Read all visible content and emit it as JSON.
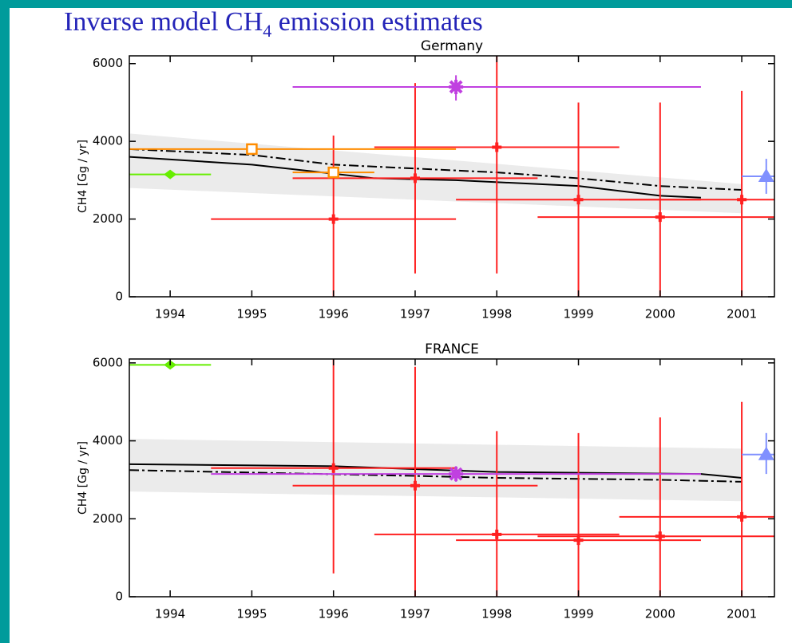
{
  "slide_title": {
    "main": "Inverse model CH",
    "subscript": "4",
    "rest": " emission estimates"
  },
  "chart_data": [
    {
      "type": "errorbar",
      "title": "Germany",
      "ylabel": "CH4 [Gg / yr]",
      "xlim": [
        1993.5,
        2001.4
      ],
      "ylim": [
        0,
        6200
      ],
      "xticks": [
        1994,
        1995,
        1996,
        1997,
        1998,
        1999,
        2000,
        2001
      ],
      "yticks": [
        0,
        2000,
        4000,
        6000
      ],
      "band": {
        "color": "#ebebeb",
        "x": [
          1993.5,
          2001
        ],
        "upper": [
          4200,
          2900
        ],
        "lower": [
          2800,
          2150
        ]
      },
      "lines": [
        {
          "color": "#000000",
          "dash": "solid",
          "x": [
            1993.5,
            1995,
            1996.5,
            1997.5,
            1999,
            2000,
            2000.5
          ],
          "values": [
            3600,
            3400,
            3050,
            3000,
            2850,
            2600,
            2550
          ]
        },
        {
          "color": "#000000",
          "dash": "dashdot",
          "x": [
            1993.5,
            1995,
            1996,
            1997,
            1998,
            1999,
            2000,
            2001
          ],
          "values": [
            3800,
            3650,
            3400,
            3300,
            3200,
            3050,
            2850,
            2750
          ]
        }
      ],
      "points": [
        {
          "color": "#ff2020",
          "marker": "plus",
          "x": [
            1996,
            1997,
            1998,
            1999,
            2000,
            2001
          ],
          "values": [
            2000,
            3050,
            3850,
            2500,
            2050,
            2500
          ],
          "y_low": [
            0,
            600,
            600,
            0,
            0,
            0
          ],
          "y_high": [
            4150,
            5500,
            6200,
            5000,
            5000,
            5300
          ],
          "x_low": [
            1994.5,
            1995.5,
            1996.5,
            1997.5,
            1998.5,
            1999.5
          ],
          "x_high": [
            1997.5,
            1998.5,
            1999.5,
            2000.5,
            2001.4,
            2001.4
          ]
        },
        {
          "color": "#c040e0",
          "marker": "x",
          "x": [
            1997.5
          ],
          "values": [
            5400
          ],
          "y_low": [
            5050
          ],
          "y_high": [
            5700
          ],
          "x_low": [
            1995.5
          ],
          "x_high": [
            2000.5
          ]
        },
        {
          "color": "#ff8c00",
          "marker": "square",
          "x": [
            1995,
            1996
          ],
          "values": [
            3800,
            3200
          ],
          "x_low": [
            1993.5,
            1995.5
          ],
          "x_high": [
            1997.5,
            1996.5
          ]
        },
        {
          "color": "#66ee00",
          "marker": "diamond",
          "x": [
            1994
          ],
          "values": [
            3150
          ],
          "x_low": [
            1993.5
          ],
          "x_high": [
            1994.5
          ]
        },
        {
          "color": "#8090ff",
          "marker": "triangle",
          "x": [
            2001.3
          ],
          "values": [
            3100
          ],
          "y_low": [
            2650
          ],
          "y_high": [
            3550
          ],
          "x_low": [
            2001
          ],
          "x_high": [
            2001.4
          ]
        }
      ]
    },
    {
      "type": "errorbar",
      "title": "FRANCE",
      "ylabel": "CH4 [Gg / yr]",
      "xlim": [
        1993.5,
        2001.4
      ],
      "ylim": [
        0,
        6100
      ],
      "xticks": [
        1994,
        1995,
        1996,
        1997,
        1998,
        1999,
        2000,
        2001
      ],
      "yticks": [
        0,
        2000,
        4000,
        6000
      ],
      "band": {
        "color": "#ebebeb",
        "x": [
          1993.5,
          2001
        ],
        "upper": [
          4050,
          3800
        ],
        "lower": [
          2700,
          2450
        ]
      },
      "lines": [
        {
          "color": "#000000",
          "dash": "solid",
          "x": [
            1993.5,
            1996,
            1998,
            2000.5,
            2001
          ],
          "values": [
            3400,
            3350,
            3200,
            3150,
            3050
          ]
        },
        {
          "color": "#000000",
          "dash": "dashdot",
          "x": [
            1993.5,
            1997,
            1998,
            2000,
            2001
          ],
          "values": [
            3250,
            3100,
            3050,
            3000,
            2950
          ]
        }
      ],
      "points": [
        {
          "color": "#ff2020",
          "marker": "plus",
          "x": [
            1996,
            1997,
            1998,
            1999,
            2000,
            2001
          ],
          "values": [
            3300,
            2850,
            1600,
            1450,
            1550,
            2050
          ],
          "y_low": [
            600,
            0,
            0,
            0,
            0,
            0
          ],
          "y_high": [
            6100,
            5900,
            4250,
            4200,
            4600,
            5000
          ],
          "x_low": [
            1994.5,
            1995.5,
            1996.5,
            1997.5,
            1998.5,
            1999.5
          ],
          "x_high": [
            1997.5,
            1998.5,
            1999.5,
            2000.5,
            2001.4,
            2001.4
          ]
        },
        {
          "color": "#c040e0",
          "marker": "x",
          "x": [
            1997.5
          ],
          "values": [
            3150
          ],
          "y_low": [
            2950
          ],
          "y_high": [
            3350
          ],
          "x_low": [
            1994.5
          ],
          "x_high": [
            2000.5
          ]
        },
        {
          "color": "#66ee00",
          "marker": "diamond",
          "x": [
            1994
          ],
          "values": [
            5950
          ],
          "x_low": [
            1993.5
          ],
          "x_high": [
            1994.5
          ]
        },
        {
          "color": "#8090ff",
          "marker": "triangle",
          "x": [
            2001.3
          ],
          "values": [
            3650
          ],
          "y_low": [
            3150
          ],
          "y_high": [
            4200
          ],
          "x_low": [
            2001
          ],
          "x_high": [
            2001.4
          ]
        }
      ]
    }
  ]
}
